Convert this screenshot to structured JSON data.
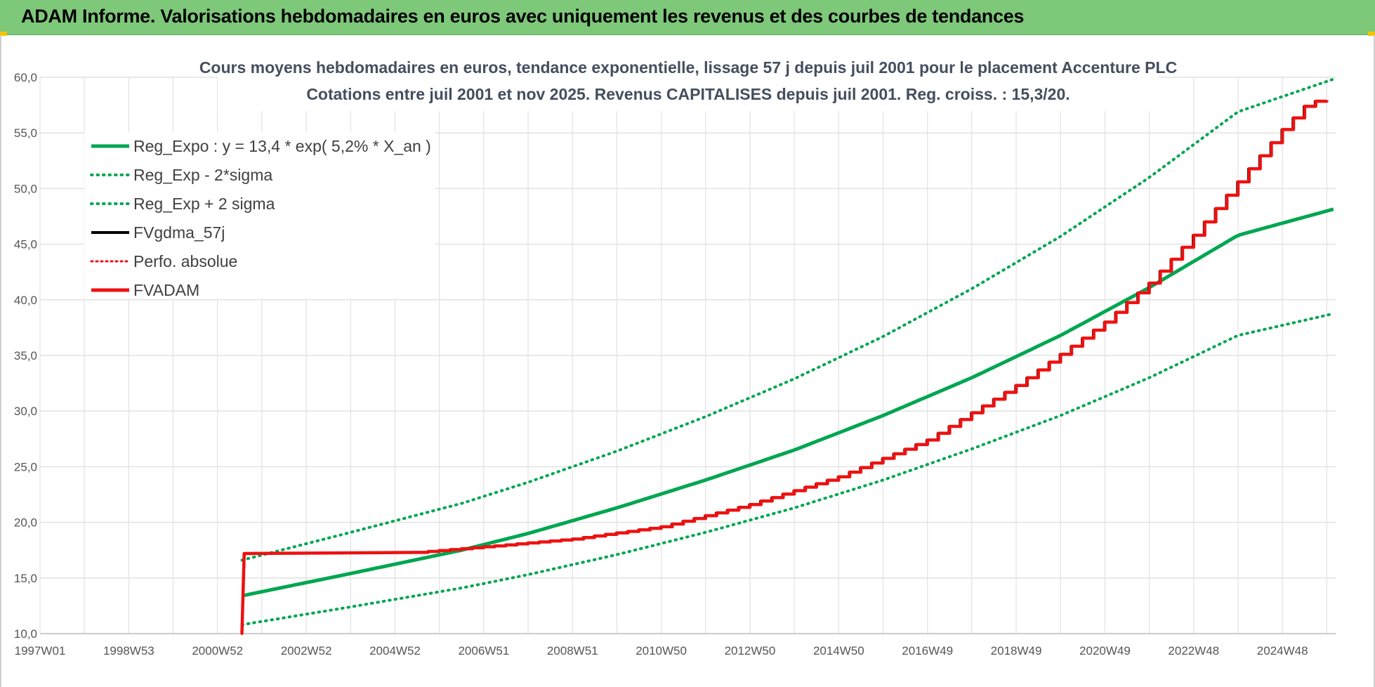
{
  "header": {
    "title": "ADAM Informe. Valorisations hebdomadaires en euros avec uniquement les revenus et des courbes de tendances"
  },
  "colors": {
    "header_bg": "#7ec87a",
    "green": "#00a651",
    "red": "#ee1111",
    "black": "#000000",
    "grid": "#e2e2e2"
  },
  "chart_data": {
    "type": "line",
    "title": "Cours moyens hebdomadaires en euros, tendance exponentielle, lissage 57 j depuis juil 2001 pour le placement Accenture PLC",
    "subtitle": "Cotations entre juil 2001 et nov 2025. Revenus CAPITALISES depuis juil 2001. Reg. croiss. : 15,3/20.",
    "xlabel": "",
    "ylabel": "",
    "xlim": [
      1997.0,
      2026.2
    ],
    "ylim": [
      10,
      60
    ],
    "y_ticks": [
      "10,0",
      "15,0",
      "20,0",
      "25,0",
      "30,0",
      "35,0",
      "40,0",
      "45,0",
      "50,0",
      "55,0",
      "60,0"
    ],
    "x_ticks": [
      {
        "label": "1997W01",
        "x": 1997.0
      },
      {
        "label": "1998W53",
        "x": 1999.0
      },
      {
        "label": "2000W52",
        "x": 2001.0
      },
      {
        "label": "2002W52",
        "x": 2003.0
      },
      {
        "label": "2004W52",
        "x": 2005.0
      },
      {
        "label": "2006W51",
        "x": 2007.0
      },
      {
        "label": "2008W51",
        "x": 2009.0
      },
      {
        "label": "2010W50",
        "x": 2011.0
      },
      {
        "label": "2012W50",
        "x": 2013.0
      },
      {
        "label": "2014W50",
        "x": 2015.0
      },
      {
        "label": "2016W49",
        "x": 2017.0
      },
      {
        "label": "2018W49",
        "x": 2019.0
      },
      {
        "label": "2020W49",
        "x": 2021.0
      },
      {
        "label": "2022W48",
        "x": 2023.0
      },
      {
        "label": "2024W48",
        "x": 2025.0
      }
    ],
    "grid": true,
    "legend_position": "top-left",
    "series": [
      {
        "name": "Reg_Expo : y = 13,4 * exp( 5,2% *  X_an )",
        "style": "solid",
        "color": "#00a651",
        "x": [
          2001.55,
          2004,
          2006.5,
          2008,
          2010,
          2012,
          2014,
          2016,
          2018,
          2020,
          2022,
          2024,
          2026.2
        ],
        "values": [
          13.4,
          15.4,
          17.5,
          19.0,
          21.3,
          23.8,
          26.5,
          29.6,
          33.0,
          36.8,
          41.1,
          45.8,
          48.2
        ]
      },
      {
        "name": "Reg_Exp - 2*sigma",
        "style": "dotted",
        "color": "#00a651",
        "x": [
          2001.55,
          2004,
          2006.5,
          2008,
          2010,
          2012,
          2014,
          2016,
          2018,
          2020,
          2022,
          2024,
          2026.2
        ],
        "values": [
          10.8,
          12.4,
          14.1,
          15.3,
          17.1,
          19.1,
          21.3,
          23.8,
          26.6,
          29.6,
          33.0,
          36.8,
          38.8
        ]
      },
      {
        "name": "Reg_Exp + 2 sigma",
        "style": "dotted",
        "color": "#00a651",
        "x": [
          2001.55,
          2004,
          2006.5,
          2008,
          2010,
          2012,
          2014,
          2016,
          2018,
          2020,
          2022,
          2024,
          2026.2
        ],
        "values": [
          16.6,
          19.1,
          21.7,
          23.6,
          26.4,
          29.5,
          32.9,
          36.7,
          41.0,
          45.7,
          51.0,
          56.9,
          59.9
        ]
      },
      {
        "name": "FVgdma_57j",
        "style": "solid",
        "color": "#000000",
        "x": [
          2001.55,
          2001.6,
          2005.5,
          2007,
          2009,
          2011,
          2013,
          2015,
          2017,
          2019,
          2020,
          2021,
          2022,
          2023,
          2024,
          2025,
          2025.6,
          2026.2
        ],
        "values": [
          10.0,
          17.2,
          17.3,
          17.8,
          18.5,
          19.6,
          21.6,
          24.1,
          27.4,
          32.3,
          35.1,
          38.0,
          41.5,
          45.8,
          50.6,
          55.3,
          57.8,
          58.0
        ]
      },
      {
        "name": "Perfo. absolue",
        "style": "dotted",
        "color": "#ee1111",
        "x": [
          2001.55,
          2001.6,
          2005.5,
          2007,
          2009,
          2011,
          2013,
          2015,
          2017,
          2019,
          2020,
          2021,
          2022,
          2023,
          2024,
          2025,
          2025.6,
          2026.2
        ],
        "values": [
          10.0,
          17.2,
          17.3,
          17.8,
          18.5,
          19.6,
          21.6,
          24.1,
          27.4,
          32.3,
          35.1,
          38.0,
          41.5,
          45.8,
          50.6,
          55.3,
          57.8,
          58.0
        ]
      },
      {
        "name": "FVADAM",
        "style": "solid",
        "color": "#ee1111",
        "x": [
          2001.55,
          2001.6,
          2005.5,
          2007,
          2009,
          2011,
          2013,
          2015,
          2017,
          2019,
          2020,
          2021,
          2022,
          2023,
          2024,
          2025,
          2025.6,
          2026.2
        ],
        "values": [
          10.0,
          17.2,
          17.3,
          17.8,
          18.5,
          19.6,
          21.6,
          24.1,
          27.4,
          32.3,
          35.1,
          38.0,
          41.5,
          45.8,
          50.6,
          55.3,
          57.8,
          58.0
        ]
      }
    ]
  }
}
